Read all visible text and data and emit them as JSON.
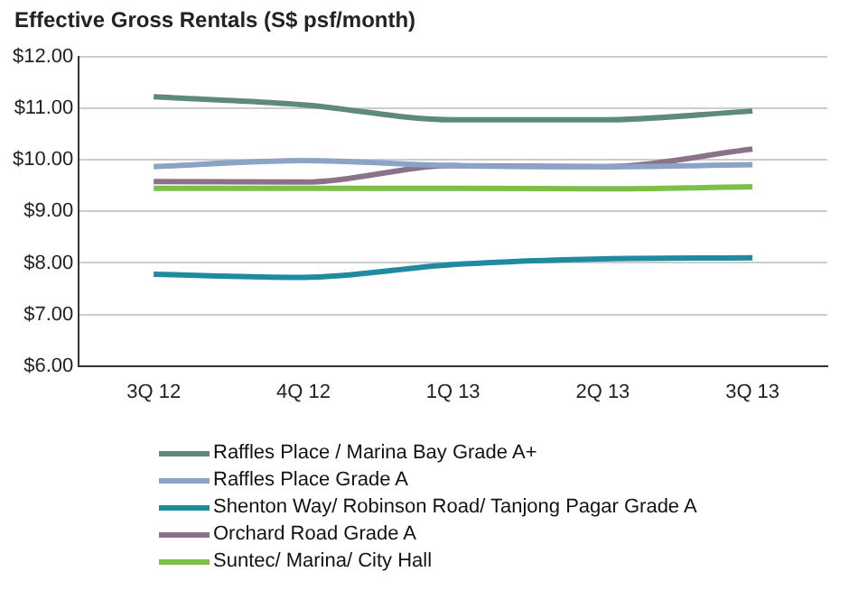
{
  "chart_data": {
    "type": "line",
    "title": "Effective Gross Rentals (S$ psf/month)",
    "categories": [
      "3Q 12",
      "4Q 12",
      "1Q 13",
      "2Q 13",
      "3Q 13"
    ],
    "series": [
      {
        "name": "Raffles Place / Marina Bay Grade A+",
        "color": "#5e8a78",
        "values": [
          11.23,
          11.07,
          10.78,
          10.78,
          10.95
        ]
      },
      {
        "name": "Raffles Place Grade A",
        "color": "#8ba3c7",
        "values": [
          9.87,
          9.99,
          9.89,
          9.87,
          9.91
        ]
      },
      {
        "name": "Shenton Way/ Robinson Road/ Tanjong Pagar Grade A",
        "color": "#1f8aa0",
        "values": [
          7.78,
          7.72,
          7.97,
          8.08,
          8.1
        ]
      },
      {
        "name": "Orchard Road Grade A",
        "color": "#8a7288",
        "values": [
          9.58,
          9.57,
          9.89,
          9.87,
          10.21
        ]
      },
      {
        "name": "Suntec/ Marina/ City Hall",
        "color": "#7cc04a",
        "values": [
          9.45,
          9.45,
          9.45,
          9.44,
          9.48
        ]
      }
    ],
    "ylim": [
      6,
      12
    ],
    "yticks": [
      {
        "value": 6,
        "label": "$6.00"
      },
      {
        "value": 7,
        "label": "$7.00"
      },
      {
        "value": 8,
        "label": "$8.00"
      },
      {
        "value": 9,
        "label": "$9.00"
      },
      {
        "value": 10,
        "label": "$10.00"
      },
      {
        "value": 11,
        "label": "$11.00"
      },
      {
        "value": 12,
        "label": "$12.00"
      }
    ],
    "grid": "y",
    "legend": "bottom",
    "marker": "none",
    "line_style": "solid"
  }
}
